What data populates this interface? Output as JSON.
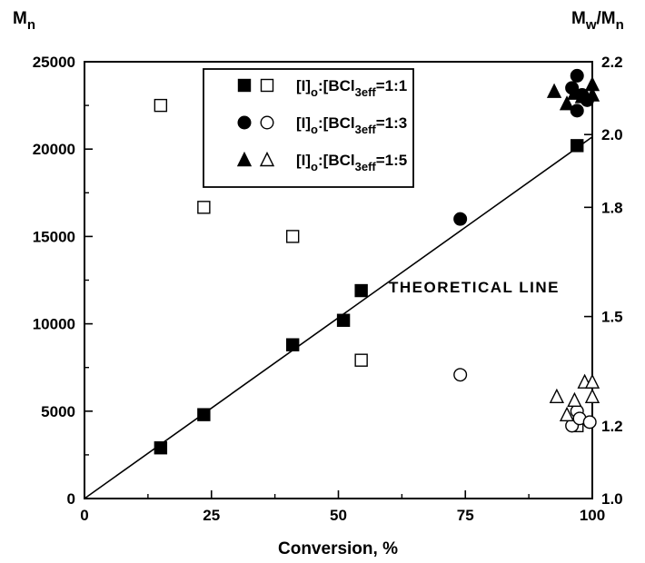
{
  "chart_data": {
    "type": "scatter",
    "xlabel": "Conversion, %",
    "ylabel_left": "M",
    "ylabel_left_sub": "n",
    "ylabel_right": "M",
    "ylabel_right_sub1": "w",
    "ylabel_right_mid": "/M",
    "ylabel_right_sub2": "n",
    "xlim": [
      0,
      100
    ],
    "ylim_left": [
      0,
      25000
    ],
    "ylim_right": [
      1.0,
      2.2
    ],
    "x_ticks": [
      "0",
      "25",
      "50",
      "75",
      "100"
    ],
    "x_tick_values": [
      0,
      25,
      50,
      75,
      100
    ],
    "y_left_ticks": [
      "0",
      "5000",
      "10000",
      "15000",
      "20000",
      "25000"
    ],
    "y_left_tick_values": [
      0,
      5000,
      10000,
      15000,
      20000,
      25000
    ],
    "y_right_ticks": [
      "1.0",
      "1.2",
      "1.5",
      "1.8",
      "2.0",
      "2.2"
    ],
    "y_right_tick_values": [
      1.0,
      1.2,
      1.5,
      1.8,
      2.0,
      2.2
    ],
    "legend": [
      {
        "prefix": "[I]",
        "sub1": "o",
        "mid": ":[BCl",
        "sub2": "3",
        "sub3": "eff",
        "suffix": "=1:1",
        "marker": "square"
      },
      {
        "prefix": "[I]",
        "sub1": "o",
        "mid": ":[BCl",
        "sub2": "3",
        "sub3": "eff",
        "suffix": "=1:3",
        "marker": "circle"
      },
      {
        "prefix": "[I]",
        "sub1": "o",
        "mid": ":[BCl",
        "sub2": "3",
        "sub3": "eff",
        "suffix": "=1:5",
        "marker": "triangle"
      }
    ],
    "annotation": "THEORETICAL LINE",
    "theoretical_line": [
      [
        0,
        0
      ],
      [
        100,
        20700
      ]
    ],
    "series": [
      {
        "ratio": "1:1",
        "quantity": "Mn",
        "axis": "left",
        "marker": "square",
        "filled": true,
        "points": [
          [
            15,
            2900
          ],
          [
            23.5,
            4800
          ],
          [
            41,
            8800
          ],
          [
            51,
            10200
          ],
          [
            54.5,
            11900
          ],
          [
            97,
            20200
          ]
        ]
      },
      {
        "ratio": "1:1",
        "quantity": "Mw/Mn",
        "axis": "right",
        "marker": "square",
        "filled": false,
        "points": [
          [
            15,
            2.08
          ],
          [
            23.5,
            1.8
          ],
          [
            41,
            1.72
          ],
          [
            54.5,
            1.38
          ],
          [
            97,
            1.2
          ]
        ]
      },
      {
        "ratio": "1:3",
        "quantity": "Mn",
        "axis": "left",
        "marker": "circle",
        "filled": true,
        "points": [
          [
            74,
            16000
          ],
          [
            96,
            23500
          ],
          [
            97,
            24200
          ],
          [
            97,
            22200
          ],
          [
            98,
            23100
          ],
          [
            99,
            22800
          ]
        ]
      },
      {
        "ratio": "1:3",
        "quantity": "Mw/Mn",
        "axis": "right",
        "marker": "circle",
        "filled": false,
        "points": [
          [
            74,
            1.34
          ],
          [
            96,
            1.2
          ],
          [
            97,
            1.24
          ],
          [
            97.5,
            1.22
          ],
          [
            99.5,
            1.21
          ]
        ]
      },
      {
        "ratio": "1:5",
        "quantity": "Mn",
        "axis": "left",
        "marker": "triangle",
        "filled": true,
        "points": [
          [
            92.5,
            23300
          ],
          [
            95,
            22600
          ],
          [
            96.5,
            23200
          ],
          [
            98,
            23000
          ],
          [
            100,
            23700
          ],
          [
            100,
            23100
          ]
        ]
      },
      {
        "ratio": "1:5",
        "quantity": "Mw/Mn",
        "axis": "right",
        "marker": "triangle",
        "filled": false,
        "points": [
          [
            93,
            1.28
          ],
          [
            95,
            1.23
          ],
          [
            96.5,
            1.27
          ],
          [
            98.5,
            1.32
          ],
          [
            100,
            1.32
          ],
          [
            100,
            1.28
          ]
        ]
      }
    ]
  }
}
